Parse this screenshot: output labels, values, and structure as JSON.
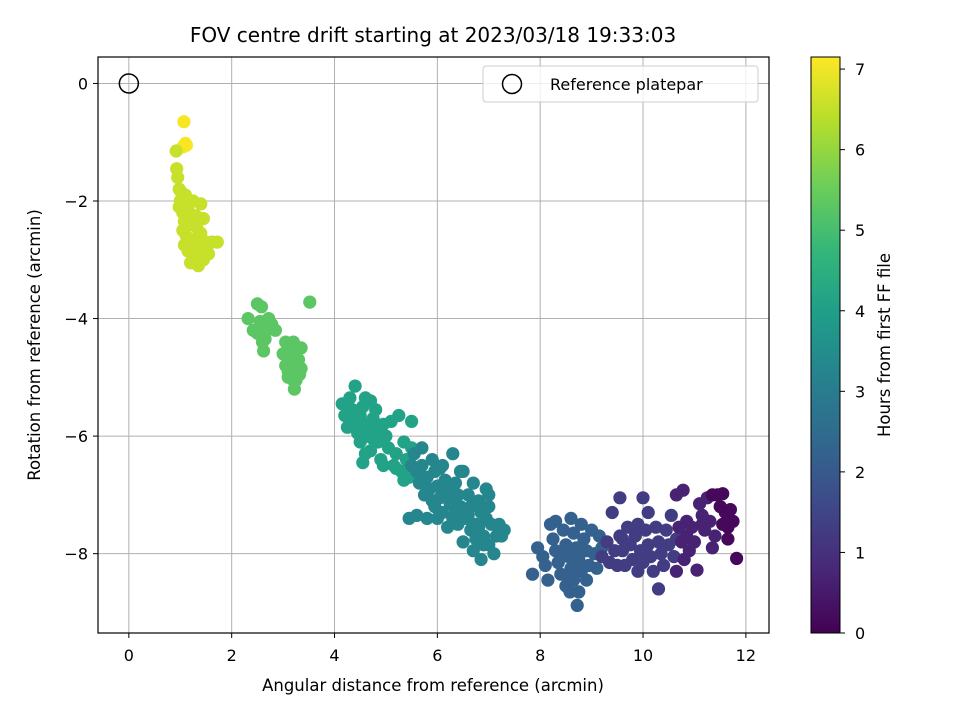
{
  "chart_data": {
    "type": "scatter",
    "title": "FOV centre drift starting at 2023/03/18 19:33:03",
    "xlabel": "Angular distance from reference (arcmin)",
    "ylabel": "Rotation from reference (arcmin)",
    "xlim": [
      -0.6,
      12.45
    ],
    "ylim": [
      -9.35,
      0.45
    ],
    "xticks": [
      0,
      2,
      4,
      6,
      8,
      10,
      12
    ],
    "xtick_labels": [
      "0",
      "2",
      "4",
      "6",
      "8",
      "10",
      "12"
    ],
    "yticks": [
      0,
      -2,
      -4,
      -6,
      -8
    ],
    "ytick_labels": [
      "0",
      "−2",
      "−4",
      "−6",
      "−8"
    ],
    "grid": true,
    "colormap": "viridis",
    "colorbar": {
      "label": "Hours from first FF file",
      "range": [
        0,
        7.15
      ],
      "ticks": [
        0,
        1,
        2,
        3,
        4,
        5,
        6,
        7
      ],
      "tick_labels": [
        "0",
        "1",
        "2",
        "3",
        "4",
        "5",
        "6",
        "7"
      ]
    },
    "legend": {
      "position": "upper right",
      "entries": [
        "Reference platepar"
      ]
    },
    "reference_point": {
      "x": 0,
      "y": 0
    },
    "clusters": [
      {
        "hours": 7.1,
        "points": [
          [
            1.07,
            -0.65
          ],
          [
            1.12,
            -1.05
          ],
          [
            1.05,
            -1.08
          ],
          [
            1.1,
            -1.02
          ]
        ]
      },
      {
        "hours": 6.55,
        "points": [
          [
            0.92,
            -1.15
          ],
          [
            0.93,
            -1.45
          ],
          [
            0.95,
            -1.6
          ],
          [
            0.98,
            -1.8
          ],
          [
            1.0,
            -2.0
          ],
          [
            0.98,
            -2.1
          ],
          [
            1.05,
            -2.2
          ],
          [
            1.1,
            -1.9
          ],
          [
            1.08,
            -2.35
          ],
          [
            1.05,
            -2.5
          ],
          [
            1.12,
            -2.6
          ],
          [
            1.08,
            -2.75
          ],
          [
            1.15,
            -2.85
          ],
          [
            1.2,
            -3.05
          ],
          [
            1.25,
            -2.0
          ],
          [
            1.3,
            -2.25
          ],
          [
            1.32,
            -2.45
          ],
          [
            1.35,
            -2.6
          ],
          [
            1.38,
            -2.8
          ],
          [
            1.42,
            -2.95
          ],
          [
            1.35,
            -3.1
          ],
          [
            1.45,
            -2.3
          ],
          [
            1.4,
            -2.05
          ],
          [
            1.5,
            -2.7
          ],
          [
            1.55,
            -2.9
          ],
          [
            1.62,
            -2.7
          ],
          [
            1.72,
            -2.7
          ],
          [
            1.2,
            -2.7
          ],
          [
            1.28,
            -2.95
          ],
          [
            1.18,
            -2.4
          ],
          [
            1.15,
            -2.15
          ],
          [
            1.22,
            -2.25
          ],
          [
            1.4,
            -2.55
          ],
          [
            1.3,
            -2.75
          ],
          [
            1.45,
            -3.0
          ],
          [
            1.12,
            -2.0
          ],
          [
            1.02,
            -1.85
          ],
          [
            1.25,
            -2.8
          ]
        ]
      },
      {
        "hours": 5.3,
        "points": [
          [
            2.32,
            -4.0
          ],
          [
            2.42,
            -4.2
          ],
          [
            2.5,
            -3.75
          ],
          [
            2.58,
            -3.8
          ],
          [
            2.55,
            -4.05
          ],
          [
            2.6,
            -4.4
          ],
          [
            2.62,
            -4.55
          ],
          [
            2.68,
            -4.2
          ],
          [
            2.72,
            -4.0
          ],
          [
            2.78,
            -4.1
          ],
          [
            2.85,
            -4.2
          ],
          [
            2.5,
            -4.25
          ],
          [
            2.65,
            -4.35
          ],
          [
            3.0,
            -4.6
          ],
          [
            3.05,
            -4.8
          ],
          [
            3.1,
            -5.0
          ],
          [
            3.05,
            -4.4
          ],
          [
            3.15,
            -4.85
          ],
          [
            3.2,
            -5.05
          ],
          [
            3.22,
            -5.2
          ],
          [
            3.28,
            -4.9
          ],
          [
            3.3,
            -4.7
          ],
          [
            3.35,
            -4.5
          ],
          [
            3.32,
            -4.95
          ],
          [
            3.25,
            -4.6
          ],
          [
            3.2,
            -4.4
          ],
          [
            3.1,
            -4.7
          ],
          [
            3.25,
            -5.05
          ],
          [
            3.52,
            -3.72
          ],
          [
            3.1,
            -4.9
          ],
          [
            3.18,
            -4.55
          ],
          [
            2.7,
            -4.1
          ],
          [
            3.35,
            -4.85
          ]
        ]
      },
      {
        "hours": 4.1,
        "points": [
          [
            4.15,
            -5.45
          ],
          [
            4.2,
            -5.65
          ],
          [
            4.25,
            -5.85
          ],
          [
            4.3,
            -5.35
          ],
          [
            4.35,
            -5.55
          ],
          [
            4.4,
            -5.75
          ],
          [
            4.45,
            -5.95
          ],
          [
            4.4,
            -5.15
          ],
          [
            4.5,
            -6.1
          ],
          [
            4.55,
            -5.5
          ],
          [
            4.6,
            -5.8
          ],
          [
            4.65,
            -6.0
          ],
          [
            4.7,
            -5.4
          ],
          [
            4.7,
            -6.25
          ],
          [
            4.75,
            -5.7
          ],
          [
            4.8,
            -5.9
          ],
          [
            4.85,
            -6.1
          ],
          [
            4.9,
            -6.4
          ],
          [
            4.6,
            -6.3
          ],
          [
            4.55,
            -6.45
          ],
          [
            4.8,
            -5.55
          ],
          [
            4.95,
            -5.8
          ],
          [
            5.0,
            -6.0
          ],
          [
            5.05,
            -6.2
          ],
          [
            5.1,
            -5.75
          ],
          [
            5.15,
            -6.5
          ],
          [
            5.2,
            -6.3
          ],
          [
            5.25,
            -5.65
          ],
          [
            5.3,
            -6.6
          ],
          [
            5.35,
            -6.1
          ],
          [
            5.4,
            -6.4
          ],
          [
            5.45,
            -6.7
          ],
          [
            5.5,
            -6.2
          ],
          [
            4.5,
            -5.65
          ],
          [
            4.3,
            -5.75
          ],
          [
            4.6,
            -5.35
          ],
          [
            4.75,
            -6.05
          ],
          [
            5.2,
            -6.55
          ],
          [
            5.5,
            -5.75
          ],
          [
            5.35,
            -6.75
          ],
          [
            4.95,
            -6.5
          ]
        ]
      },
      {
        "hours": 3.3,
        "points": [
          [
            5.5,
            -6.5
          ],
          [
            5.6,
            -6.6
          ],
          [
            5.65,
            -6.8
          ],
          [
            5.7,
            -6.5
          ],
          [
            5.75,
            -7.0
          ],
          [
            5.8,
            -6.7
          ],
          [
            5.85,
            -6.9
          ],
          [
            5.9,
            -7.1
          ],
          [
            5.95,
            -6.6
          ],
          [
            6.0,
            -6.85
          ],
          [
            6.05,
            -7.05
          ],
          [
            6.1,
            -6.5
          ],
          [
            6.1,
            -7.3
          ],
          [
            6.15,
            -6.75
          ],
          [
            6.2,
            -6.95
          ],
          [
            6.25,
            -7.15
          ],
          [
            6.3,
            -6.3
          ],
          [
            6.3,
            -7.4
          ],
          [
            6.35,
            -6.8
          ],
          [
            6.4,
            -7.0
          ],
          [
            6.45,
            -7.2
          ],
          [
            6.5,
            -6.6
          ],
          [
            6.55,
            -7.4
          ],
          [
            6.6,
            -7.0
          ],
          [
            6.65,
            -7.2
          ],
          [
            6.7,
            -6.8
          ],
          [
            6.75,
            -7.5
          ],
          [
            6.8,
            -7.1
          ],
          [
            6.85,
            -7.3
          ],
          [
            6.9,
            -7.7
          ],
          [
            6.95,
            -7.4
          ],
          [
            7.0,
            -7.2
          ],
          [
            5.6,
            -7.35
          ],
          [
            5.45,
            -7.4
          ],
          [
            5.8,
            -7.4
          ],
          [
            6.2,
            -7.55
          ],
          [
            6.5,
            -7.8
          ],
          [
            6.7,
            -7.95
          ],
          [
            6.85,
            -8.1
          ],
          [
            7.1,
            -8.0
          ],
          [
            7.25,
            -7.7
          ],
          [
            7.2,
            -7.5
          ],
          [
            5.95,
            -7.2
          ],
          [
            6.45,
            -6.6
          ],
          [
            6.0,
            -7.4
          ],
          [
            6.4,
            -7.5
          ],
          [
            6.65,
            -7.6
          ],
          [
            7.0,
            -7.85
          ],
          [
            7.3,
            -7.6
          ],
          [
            5.7,
            -6.2
          ],
          [
            5.55,
            -6.3
          ],
          [
            6.05,
            -6.55
          ],
          [
            5.9,
            -6.4
          ],
          [
            6.35,
            -7.3
          ],
          [
            6.6,
            -7.35
          ],
          [
            6.8,
            -7.55
          ],
          [
            6.9,
            -7.85
          ],
          [
            7.05,
            -7.5
          ],
          [
            6.95,
            -6.9
          ],
          [
            7.0,
            -7.0
          ],
          [
            6.75,
            -7.75
          ],
          [
            7.15,
            -7.7
          ]
        ]
      },
      {
        "hours": 2.2,
        "points": [
          [
            7.85,
            -8.35
          ],
          [
            7.95,
            -7.9
          ],
          [
            8.05,
            -8.05
          ],
          [
            8.1,
            -8.2
          ],
          [
            8.15,
            -8.45
          ],
          [
            8.2,
            -7.5
          ],
          [
            8.25,
            -7.75
          ],
          [
            8.3,
            -7.95
          ],
          [
            8.35,
            -8.15
          ],
          [
            8.4,
            -8.35
          ],
          [
            8.45,
            -7.6
          ],
          [
            8.5,
            -7.85
          ],
          [
            8.5,
            -8.55
          ],
          [
            8.55,
            -8.05
          ],
          [
            8.6,
            -8.25
          ],
          [
            8.6,
            -7.4
          ],
          [
            8.65,
            -8.45
          ],
          [
            8.65,
            -7.65
          ],
          [
            8.7,
            -7.9
          ],
          [
            8.75,
            -8.1
          ],
          [
            8.75,
            -8.65
          ],
          [
            8.8,
            -8.3
          ],
          [
            8.8,
            -7.5
          ],
          [
            8.85,
            -7.75
          ],
          [
            8.9,
            -7.95
          ],
          [
            8.9,
            -8.45
          ],
          [
            8.95,
            -8.2
          ],
          [
            9.0,
            -7.6
          ],
          [
            9.05,
            -8.0
          ],
          [
            9.1,
            -8.25
          ],
          [
            9.15,
            -7.7
          ],
          [
            9.2,
            -7.9
          ],
          [
            8.3,
            -7.45
          ],
          [
            8.4,
            -8.0
          ],
          [
            8.55,
            -8.35
          ],
          [
            8.72,
            -8.88
          ],
          [
            8.58,
            -8.65
          ],
          [
            8.35,
            -8.15
          ]
        ]
      },
      {
        "hours": 1.3,
        "points": [
          [
            9.2,
            -8.05
          ],
          [
            9.3,
            -7.8
          ],
          [
            9.35,
            -8.15
          ],
          [
            9.4,
            -7.3
          ],
          [
            9.45,
            -7.95
          ],
          [
            9.5,
            -8.2
          ],
          [
            9.55,
            -7.05
          ],
          [
            9.55,
            -7.7
          ],
          [
            9.6,
            -7.95
          ],
          [
            9.65,
            -8.2
          ],
          [
            9.7,
            -7.55
          ],
          [
            9.75,
            -7.85
          ],
          [
            9.8,
            -8.1
          ],
          [
            9.85,
            -7.7
          ],
          [
            9.9,
            -8.3
          ],
          [
            9.95,
            -7.95
          ],
          [
            10.0,
            -7.05
          ],
          [
            10.0,
            -8.15
          ],
          [
            10.05,
            -7.6
          ],
          [
            10.1,
            -7.85
          ],
          [
            10.15,
            -8.05
          ],
          [
            10.2,
            -8.3
          ],
          [
            10.25,
            -7.55
          ],
          [
            10.3,
            -7.8
          ],
          [
            10.3,
            -8.6
          ],
          [
            10.35,
            -8.0
          ],
          [
            10.4,
            -8.2
          ],
          [
            10.45,
            -7.6
          ],
          [
            10.5,
            -7.85
          ],
          [
            10.55,
            -7.35
          ],
          [
            10.6,
            -8.05
          ],
          [
            10.65,
            -7.75
          ],
          [
            9.6,
            -7.75
          ],
          [
            9.9,
            -7.5
          ],
          [
            10.1,
            -7.3
          ]
        ]
      },
      {
        "hours": 0.7,
        "points": [
          [
            10.65,
            -7.0
          ],
          [
            10.65,
            -8.3
          ],
          [
            10.7,
            -7.55
          ],
          [
            10.75,
            -7.8
          ],
          [
            10.78,
            -6.92
          ],
          [
            10.8,
            -8.1
          ],
          [
            10.85,
            -7.45
          ],
          [
            10.85,
            -7.7
          ],
          [
            10.9,
            -7.95
          ],
          [
            10.95,
            -7.55
          ],
          [
            11.0,
            -7.8
          ],
          [
            11.05,
            -8.28
          ],
          [
            11.1,
            -7.15
          ],
          [
            11.15,
            -7.35
          ],
          [
            11.2,
            -7.6
          ],
          [
            11.25,
            -7.05
          ],
          [
            11.3,
            -7.45
          ],
          [
            11.35,
            -7.9
          ],
          [
            11.4,
            -7.7
          ],
          [
            11.15,
            -7.5
          ]
        ]
      },
      {
        "hours": 0.15,
        "points": [
          [
            11.35,
            -7.0
          ],
          [
            11.45,
            -7.0
          ],
          [
            11.5,
            -7.2
          ],
          [
            11.55,
            -6.98
          ],
          [
            11.55,
            -7.5
          ],
          [
            11.6,
            -7.3
          ],
          [
            11.65,
            -7.55
          ],
          [
            11.65,
            -7.75
          ],
          [
            11.7,
            -7.25
          ],
          [
            11.75,
            -7.45
          ],
          [
            11.82,
            -8.08
          ]
        ]
      }
    ]
  }
}
